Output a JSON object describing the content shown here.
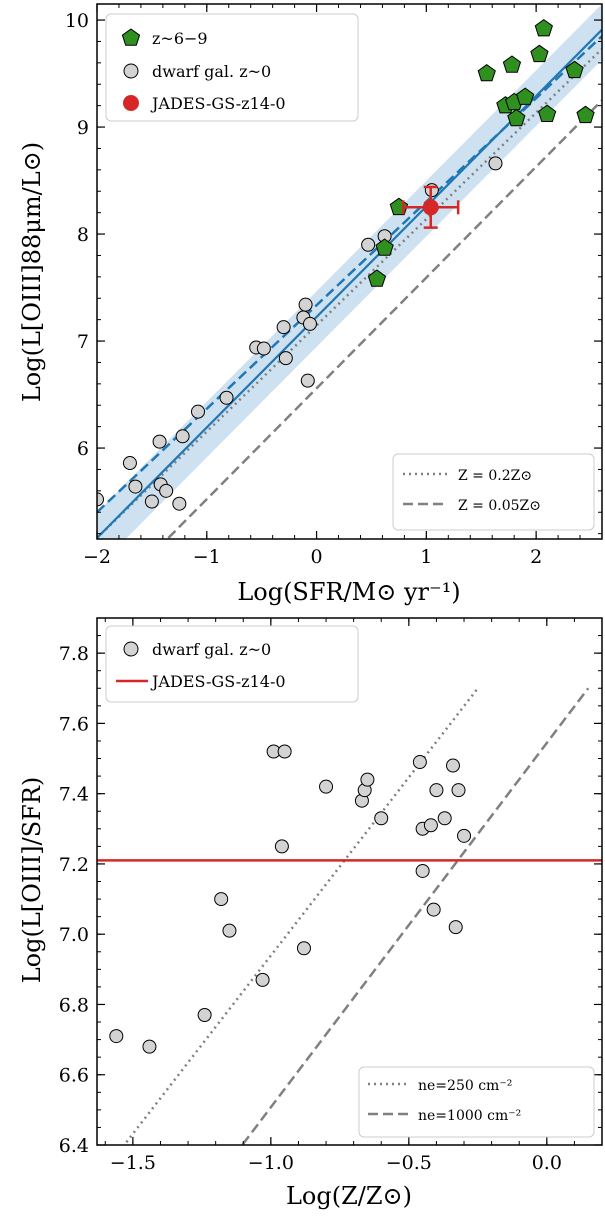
{
  "chart_data": [
    {
      "type": "scatter",
      "xlabel": "Log(SFR/M⊙ yr⁻¹)",
      "ylabel": "Log(L[OIII]88μm/L⊙)",
      "xlim": [
        -2.0,
        2.6
      ],
      "ylim": [
        5.15,
        10.15
      ],
      "x_ticks": [
        "−2",
        "−1",
        "0",
        "1",
        "2"
      ],
      "y_ticks": [
        "6",
        "7",
        "8",
        "9",
        "10"
      ],
      "x_tick_values": [
        -2,
        -1,
        0,
        1,
        2
      ],
      "y_tick_values": [
        6,
        7,
        8,
        9,
        10
      ],
      "legend_placement": "top-left",
      "legend": {
        "highz": "z~6−9",
        "dwarf": "dwarf gal. z~0",
        "jades": "JADES-GS-z14-0"
      },
      "model_legend": {
        "dotted": "Z = 0.2Z⊙",
        "dashed": "Z = 0.05Z⊙"
      },
      "model_legend_placement": "bottom-right",
      "colors": {
        "highz": "#2f8f1f",
        "dwarf": "#d3d3d3",
        "jades": "#d62728",
        "fit": "#1f77b4",
        "band": "#c6dcee",
        "model": "#808080"
      },
      "series": [
        {
          "name": "z~6−9",
          "marker": "pentagon",
          "points": [
            [
              0.75,
              8.25
            ],
            [
              0.55,
              7.58
            ],
            [
              0.62,
              7.87
            ],
            [
              1.55,
              9.5
            ],
            [
              1.78,
              9.58
            ],
            [
              1.72,
              9.2
            ],
            [
              1.8,
              9.23
            ],
            [
              1.82,
              9.08
            ],
            [
              1.9,
              9.28
            ],
            [
              2.03,
              9.68
            ],
            [
              2.07,
              9.92
            ],
            [
              2.1,
              9.12
            ],
            [
              2.35,
              9.53
            ],
            [
              2.45,
              9.11
            ]
          ]
        },
        {
          "name": "dwarf gal. z~0",
          "marker": "circle",
          "points": [
            [
              -1.7,
              5.86
            ],
            [
              -1.65,
              5.64
            ],
            [
              -1.5,
              5.5
            ],
            [
              -1.43,
              6.06
            ],
            [
              -1.42,
              5.66
            ],
            [
              -1.37,
              5.6
            ],
            [
              -1.25,
              5.48
            ],
            [
              -1.22,
              6.11
            ],
            [
              -1.08,
              6.34
            ],
            [
              -0.82,
              6.47
            ],
            [
              -0.55,
              6.94
            ],
            [
              -0.48,
              6.93
            ],
            [
              -0.3,
              7.13
            ],
            [
              -0.28,
              6.84
            ],
            [
              -0.12,
              7.22
            ],
            [
              -0.1,
              7.34
            ],
            [
              -0.06,
              7.16
            ],
            [
              -0.08,
              6.63
            ],
            [
              0.47,
              7.9
            ],
            [
              0.62,
              7.98
            ],
            [
              1.05,
              8.41
            ],
            [
              1.63,
              8.66
            ],
            [
              -2.0,
              5.52
            ]
          ]
        },
        {
          "name": "JADES-GS-z14-0",
          "marker": "circle",
          "points": [
            [
              1.04,
              8.25
            ]
          ],
          "x_err": [
            [
              0.25,
              0.25
            ]
          ],
          "y_err": [
            [
              0.19,
              0.19
            ]
          ]
        }
      ],
      "lines": {
        "fit_solid": [
          [
            -2.0,
            5.16
          ],
          [
            2.6,
            9.91
          ]
        ],
        "fit_dashed": [
          [
            -2.0,
            5.4
          ],
          [
            2.6,
            9.85
          ]
        ],
        "band": [
          [
            -2.0,
            5.4,
            4.88
          ],
          [
            2.6,
            10.15,
            9.63
          ]
        ],
        "model_dotted": [
          [
            -2.0,
            5.16
          ],
          [
            2.6,
            9.73
          ]
        ],
        "model_dashed": [
          [
            -1.35,
            5.16
          ],
          [
            2.6,
            9.25
          ]
        ]
      }
    },
    {
      "type": "scatter",
      "xlabel": "Log(Z/Z⊙)",
      "ylabel": "Log(L[OIII]/SFR)",
      "xlim": [
        -1.63,
        0.2
      ],
      "ylim": [
        6.4,
        7.9
      ],
      "x_ticks": [
        "−1.5",
        "−1.0",
        "−0.5",
        "0.0"
      ],
      "y_ticks": [
        "6.4",
        "6.6",
        "6.8",
        "7.0",
        "7.2",
        "7.4",
        "7.6",
        "7.8"
      ],
      "x_tick_values": [
        -1.5,
        -1.0,
        -0.5,
        0.0
      ],
      "y_tick_values": [
        6.4,
        6.6,
        6.8,
        7.0,
        7.2,
        7.4,
        7.6,
        7.8
      ],
      "legend_placement": "top-left",
      "legend": {
        "dwarf": "dwarf gal. z~0",
        "jades": "JADES-GS-z14-0"
      },
      "model_legend": {
        "dotted": "ne=250 cm⁻²",
        "dashed": "ne=1000 cm⁻²"
      },
      "model_legend_placement": "bottom-right",
      "colors": {
        "dwarf": "#d3d3d3",
        "jades": "#d62728",
        "model": "#808080"
      },
      "series": [
        {
          "name": "dwarf gal. z~0",
          "marker": "circle",
          "points": [
            [
              -1.56,
              6.71
            ],
            [
              -1.44,
              6.68
            ],
            [
              -1.24,
              6.77
            ],
            [
              -1.18,
              7.1
            ],
            [
              -1.15,
              7.01
            ],
            [
              -1.03,
              6.87
            ],
            [
              -0.99,
              7.52
            ],
            [
              -0.96,
              7.25
            ],
            [
              -0.95,
              7.52
            ],
            [
              -0.88,
              6.96
            ],
            [
              -0.8,
              7.42
            ],
            [
              -0.67,
              7.38
            ],
            [
              -0.66,
              7.41
            ],
            [
              -0.65,
              7.44
            ],
            [
              -0.6,
              7.33
            ],
            [
              -0.46,
              7.49
            ],
            [
              -0.45,
              7.3
            ],
            [
              -0.45,
              7.18
            ],
            [
              -0.42,
              7.31
            ],
            [
              -0.41,
              7.07
            ],
            [
              -0.4,
              7.41
            ],
            [
              -0.37,
              7.33
            ],
            [
              -0.34,
              7.48
            ],
            [
              -0.32,
              7.41
            ],
            [
              -0.3,
              7.28
            ],
            [
              -0.33,
              7.02
            ]
          ]
        }
      ],
      "lines": {
        "jades_hline": 7.21,
        "model_dotted": [
          [
            -1.63,
            6.3
          ],
          [
            -0.25,
            7.7
          ]
        ],
        "model_dashed": [
          [
            -1.2,
            6.3
          ],
          [
            0.15,
            7.7
          ]
        ]
      }
    }
  ]
}
